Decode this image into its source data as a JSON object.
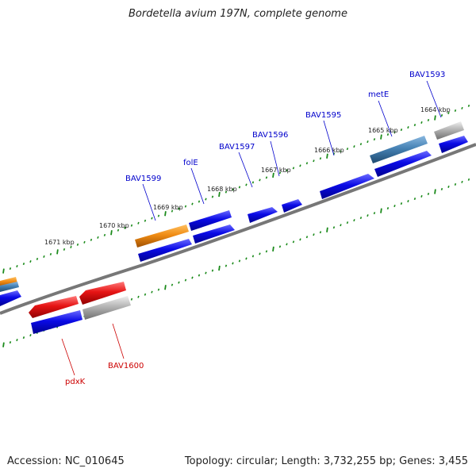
{
  "title": "Bordetella avium 197N, complete genome",
  "footer": {
    "accession": "Accession: NC_010645",
    "topology": "Topology: circular; Length: 3,732,255 bp; Genes: 3,455"
  },
  "kbp_marks": [
    "1671 kbp",
    "1670 kbp",
    "1669 kbp",
    "1668 kbp",
    "1667 kbp",
    "1666 kbp",
    "1665 kbp",
    "1664 kbp"
  ],
  "gene_labels_forward": [
    "BAV1599",
    "folE",
    "BAV1597",
    "BAV1596",
    "BAV1595",
    "metE",
    "BAV1593"
  ],
  "gene_labels_reverse": [
    "BAV1600",
    "pdxK"
  ],
  "colors": {
    "forward_label": "#0000cc",
    "reverse_label": "#cc0000",
    "backbone": "#777777",
    "tick": "#1a8a1a",
    "gene_blue": "#0a0ae6",
    "gene_red": "#e61414",
    "gene_orange": "#f08c14",
    "gene_steel": "#4682b4",
    "gene_gray": "#b4b4b4"
  }
}
